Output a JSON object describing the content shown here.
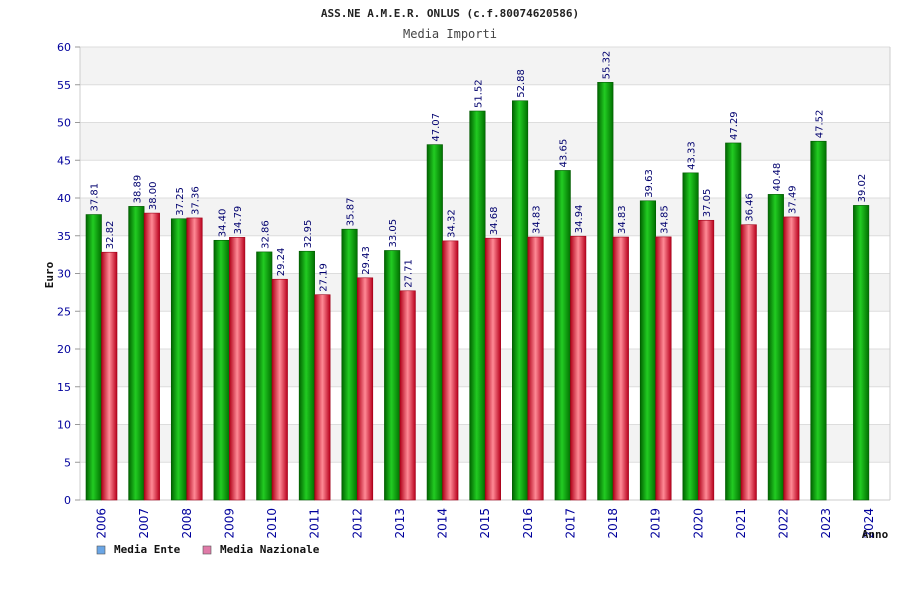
{
  "chart_data": {
    "type": "bar",
    "title": "ASS.NE A.M.E.R. ONLUS (c.f.80074620586)",
    "subtitle": "Media Importi",
    "xlabel": "Anno",
    "ylabel": "Euro",
    "ylim": [
      0,
      60
    ],
    "yticks": [
      0,
      5,
      10,
      15,
      20,
      25,
      30,
      35,
      40,
      45,
      50,
      55,
      60
    ],
    "grid": true,
    "legend_position": "bottom-left",
    "categories": [
      "2006",
      "2007",
      "2008",
      "2009",
      "2010",
      "2011",
      "2012",
      "2013",
      "2014",
      "2015",
      "2016",
      "2017",
      "2018",
      "2019",
      "2020",
      "2021",
      "2022",
      "2023",
      "2024"
    ],
    "series": [
      {
        "name": "Media Ente",
        "legend_color": "#6aa6e6",
        "color": "#18b418",
        "values": [
          37.81,
          38.89,
          37.25,
          34.4,
          32.86,
          32.95,
          35.87,
          33.05,
          47.07,
          51.52,
          52.88,
          43.65,
          55.32,
          39.63,
          43.33,
          47.29,
          40.48,
          47.52,
          39.02
        ],
        "labels": [
          "37.81",
          "38.89",
          "37.25",
          "34.40",
          "32.86",
          "32.95",
          "35.87",
          "33.05",
          "47.07",
          "51.52",
          "52.88",
          "43.65",
          "55.32",
          "39.63",
          "43.33",
          "47.29",
          "40.48",
          "47.52",
          "39.02"
        ]
      },
      {
        "name": "Media Nazionale",
        "legend_color": "#e07aa8",
        "color": "#e23a4a",
        "values": [
          32.82,
          38.0,
          37.36,
          34.79,
          29.24,
          27.19,
          29.43,
          27.71,
          34.32,
          34.68,
          34.83,
          34.94,
          34.83,
          34.85,
          37.05,
          36.46,
          37.49,
          null,
          null
        ],
        "labels": [
          "32.82",
          "38.00",
          "37.36",
          "34.79",
          "29.24",
          "27.19",
          "29.43",
          "27.71",
          "34.32",
          "34.68",
          "34.83",
          "34.94",
          "34.83",
          "34.85",
          "37.05",
          "36.46",
          "37.49",
          "",
          ""
        ]
      }
    ]
  }
}
